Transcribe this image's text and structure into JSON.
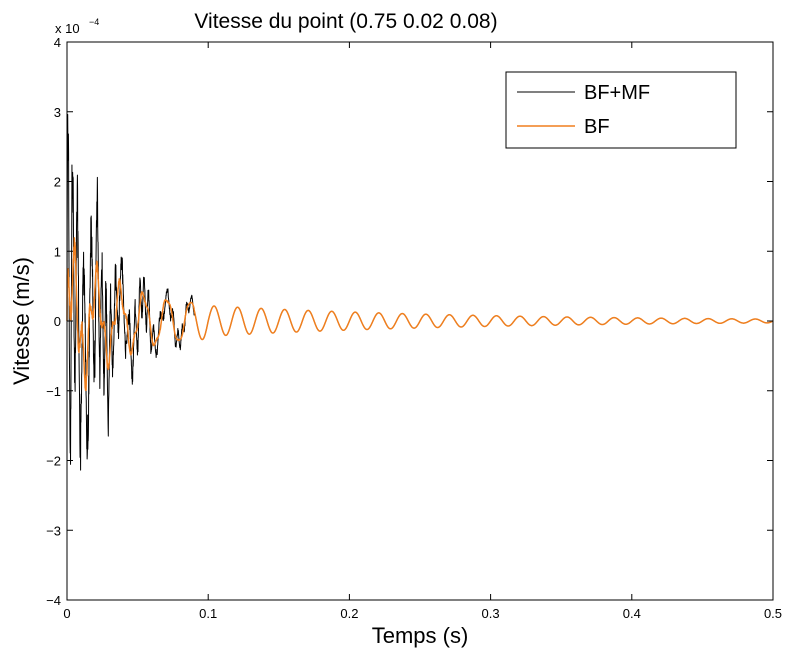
{
  "chart_data": {
    "type": "line",
    "title": "Vitesse du point (0.75 0.02 0.08)",
    "xlabel": "Temps (s)",
    "ylabel": "Vitesse (m/s)",
    "xlim": [
      0,
      0.5
    ],
    "ylim": [
      -0.0004,
      0.0004
    ],
    "y_exponent_label": "x 10",
    "y_exponent_power": "−4",
    "xticks": [
      0,
      0.1,
      0.2,
      0.3,
      0.4,
      0.5
    ],
    "xtick_labels": [
      "0",
      "0.1",
      "0.2",
      "0.3",
      "0.4",
      "0.5"
    ],
    "yticks": [
      -4,
      -3,
      -2,
      -1,
      0,
      1,
      2,
      3,
      4
    ],
    "ytick_labels": [
      "−4",
      "−3",
      "−2",
      "−1",
      "0",
      "1",
      "2",
      "3",
      "4"
    ],
    "grid": false,
    "legend_position": "top-right",
    "series": [
      {
        "name": "BF+MF",
        "color": "#000000",
        "description_values": {
          "peak_max": 0.000322,
          "peak_min": -0.00031,
          "active_until_s": 0.085,
          "decay_tau_s": 0.028,
          "dominant_freq_hz": 260
        }
      },
      {
        "name": "BF",
        "color": "#f07f1e",
        "description_values": {
          "peak_max": 0.00013,
          "peak_min": -0.00013,
          "oscillation_freq_hz": 60,
          "amplitude_at_0_1s": 2.2e-05,
          "amplitude_at_0_5s": 2e-06
        }
      }
    ]
  }
}
